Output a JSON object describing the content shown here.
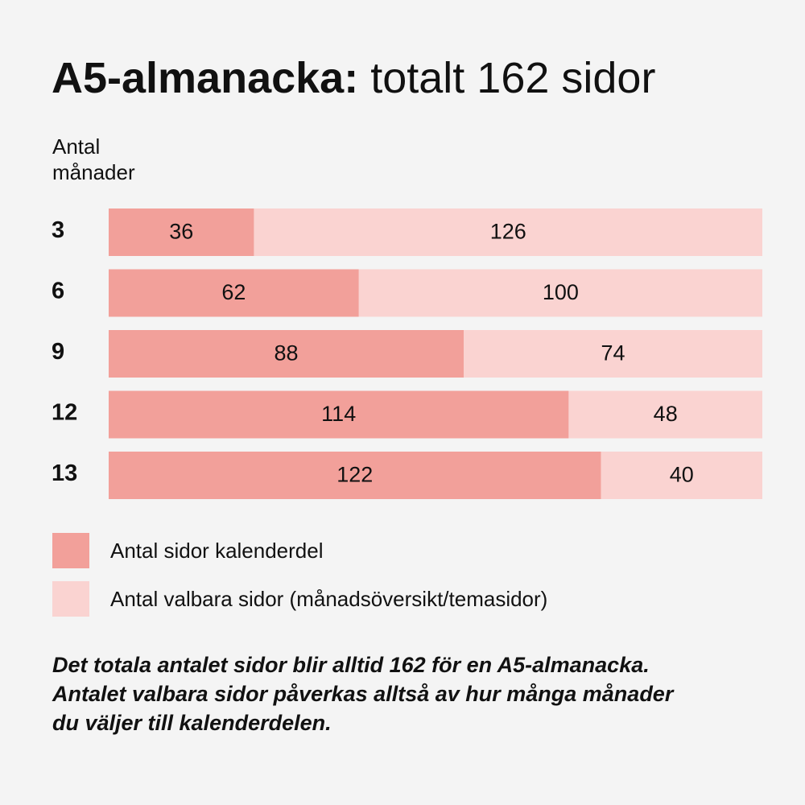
{
  "title": {
    "bold": "A5-almanacka:",
    "regular": "totalt 162 sidor"
  },
  "yaxis_label": {
    "line1": "Antal",
    "line2": "månader"
  },
  "chart_data": {
    "type": "bar",
    "orientation": "horizontal",
    "stacked": true,
    "title": "A5-almanacka: totalt 162 sidor",
    "ylabel": "Antal månader",
    "categories": [
      "3",
      "6",
      "9",
      "12",
      "13"
    ],
    "xlim": [
      0,
      162
    ],
    "series": [
      {
        "name": "Antal sidor kalenderdel",
        "values": [
          36,
          62,
          88,
          114,
          122
        ],
        "color": "#f2a09a"
      },
      {
        "name": "Antal valbara sidor (månadsöversikt/temasidor)",
        "values": [
          126,
          100,
          74,
          48,
          40
        ],
        "color": "#fad3d1"
      }
    ],
    "grid": false,
    "legend": "bottom-left"
  },
  "legend": [
    {
      "label": "Antal sidor kalenderdel",
      "color": "#f2a09a"
    },
    {
      "label": "Antal valbara sidor (månadsöversikt/temasidor)",
      "color": "#fad3d1"
    }
  ],
  "note": {
    "line1": "Det totala antalet sidor blir alltid 162 för en A5-almanacka.",
    "line2": "Antalet valbara sidor påverkas alltså av hur många månader",
    "line3": "du väljer till kalenderdelen."
  }
}
